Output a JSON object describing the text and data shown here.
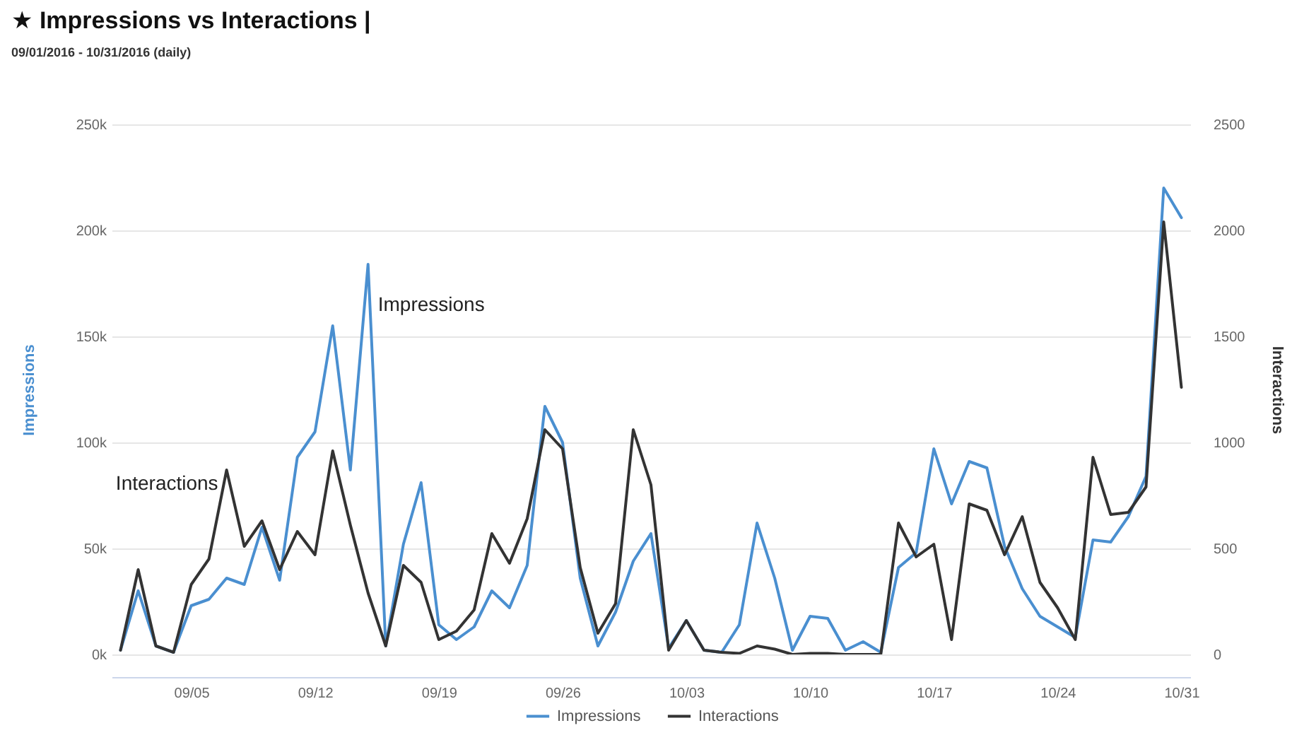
{
  "chart_data": {
    "type": "line",
    "title": "★ Impressions vs Interactions |",
    "subtitle": "09/01/2016 - 10/31/2016 (daily)",
    "ylabel": "Impressions",
    "y2label": "Interactions",
    "x": [
      "2016-09-01",
      "2016-09-02",
      "2016-09-03",
      "2016-09-04",
      "2016-09-05",
      "2016-09-06",
      "2016-09-07",
      "2016-09-08",
      "2016-09-09",
      "2016-09-10",
      "2016-09-11",
      "2016-09-12",
      "2016-09-13",
      "2016-09-14",
      "2016-09-15",
      "2016-09-16",
      "2016-09-17",
      "2016-09-18",
      "2016-09-19",
      "2016-09-20",
      "2016-09-21",
      "2016-09-22",
      "2016-09-23",
      "2016-09-24",
      "2016-09-25",
      "2016-09-26",
      "2016-09-27",
      "2016-09-28",
      "2016-09-29",
      "2016-09-30",
      "2016-10-01",
      "2016-10-02",
      "2016-10-03",
      "2016-10-04",
      "2016-10-05",
      "2016-10-06",
      "2016-10-07",
      "2016-10-08",
      "2016-10-09",
      "2016-10-10",
      "2016-10-11",
      "2016-10-12",
      "2016-10-13",
      "2016-10-14",
      "2016-10-15",
      "2016-10-16",
      "2016-10-17",
      "2016-10-18",
      "2016-10-19",
      "2016-10-20",
      "2016-10-21",
      "2016-10-22",
      "2016-10-23",
      "2016-10-24",
      "2016-10-25",
      "2016-10-26",
      "2016-10-27",
      "2016-10-28",
      "2016-10-29",
      "2016-10-30",
      "2016-10-31"
    ],
    "series": [
      {
        "name": "Impressions",
        "color": "#4a8fd0",
        "values": [
          2000,
          30000,
          4000,
          1000,
          23000,
          26000,
          36000,
          33000,
          60000,
          35000,
          93000,
          105000,
          155000,
          87000,
          184000,
          4000,
          52000,
          81000,
          14000,
          7000,
          13000,
          30000,
          22000,
          42000,
          117000,
          100000,
          36000,
          4000,
          20000,
          44000,
          57000,
          3000,
          16000,
          2000,
          1000,
          14000,
          62000,
          36000,
          2000,
          18000,
          17000,
          2000,
          6000,
          1000,
          41000,
          48000,
          97000,
          71000,
          91000,
          88000,
          51000,
          31000,
          18000,
          13000,
          8000,
          54000,
          53000,
          65000,
          84000,
          220000,
          206000
        ]
      },
      {
        "name": "Interactions",
        "color": "#333333",
        "axis": "y2",
        "values": [
          20,
          400,
          40,
          10,
          330,
          450,
          870,
          510,
          630,
          400,
          580,
          470,
          960,
          610,
          290,
          40,
          420,
          340,
          70,
          110,
          210,
          570,
          430,
          640,
          1060,
          970,
          410,
          100,
          240,
          1060,
          800,
          20,
          160,
          20,
          10,
          5,
          40,
          25,
          0,
          5,
          5,
          0,
          0,
          0,
          620,
          460,
          520,
          70,
          710,
          680,
          470,
          650,
          340,
          220,
          70,
          930,
          660,
          670,
          790,
          2040,
          1260
        ]
      }
    ],
    "xlim": [
      "2016-08-31T12:00",
      "2016-10-31T12:00"
    ],
    "xticks": [
      {
        "value": "2016-09-05",
        "label": "09/05"
      },
      {
        "value": "2016-09-12",
        "label": "09/12"
      },
      {
        "value": "2016-09-19",
        "label": "09/19"
      },
      {
        "value": "2016-09-26",
        "label": "09/26"
      },
      {
        "value": "2016-10-03",
        "label": "10/03"
      },
      {
        "value": "2016-10-10",
        "label": "10/10"
      },
      {
        "value": "2016-10-17",
        "label": "10/17"
      },
      {
        "value": "2016-10-24",
        "label": "10/24"
      },
      {
        "value": "2016-10-31",
        "label": "10/31"
      }
    ],
    "ylim": [
      0,
      250000
    ],
    "yticks": [
      {
        "value": 0,
        "label": "0k"
      },
      {
        "value": 50000,
        "label": "50k"
      },
      {
        "value": 100000,
        "label": "100k"
      },
      {
        "value": 150000,
        "label": "150k"
      },
      {
        "value": 200000,
        "label": "200k"
      },
      {
        "value": 250000,
        "label": "250k"
      }
    ],
    "y2lim": [
      0,
      2500
    ],
    "y2ticks": [
      0,
      500,
      1000,
      1500,
      2000,
      2500
    ],
    "annotations": [
      {
        "text": "Impressions",
        "x": "2016-09-15",
        "y": 184000
      },
      {
        "text": "Interactions",
        "x": "2016-09-07",
        "y": 87000
      }
    ],
    "grid": "y",
    "legend": "bottom"
  }
}
